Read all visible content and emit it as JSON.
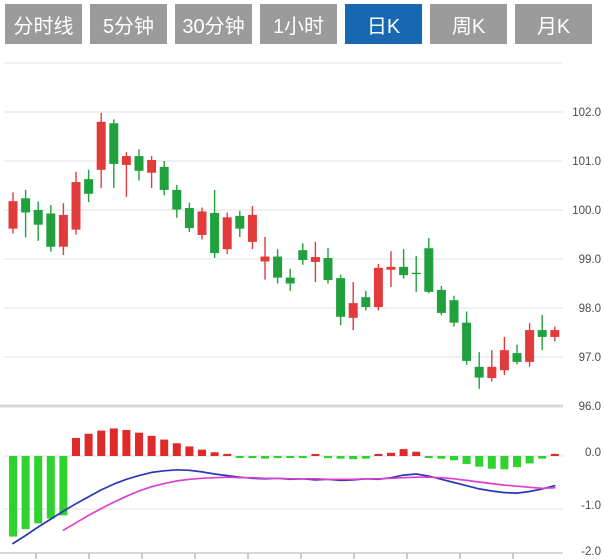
{
  "tabs": [
    {
      "label": "分时线",
      "active": false
    },
    {
      "label": "5分钟",
      "active": false
    },
    {
      "label": "30分钟",
      "active": false
    },
    {
      "label": "1小时",
      "active": false
    },
    {
      "label": "日K",
      "active": true
    },
    {
      "label": "周K",
      "active": false
    },
    {
      "label": "月K",
      "active": false
    }
  ],
  "chart_data": {
    "type": "candlestick",
    "subtype": "daily-kline-with-macd",
    "title": "",
    "price_axis": {
      "labels": [
        "102.0",
        "101.0",
        "100.0",
        "99.0",
        "98.0",
        "97.0",
        "96.0"
      ],
      "values": [
        102,
        101,
        100,
        99,
        98,
        97,
        96
      ],
      "top_gridline_value": 103,
      "range": [
        96,
        103
      ],
      "position": "right",
      "grid": true
    },
    "macd_axis": {
      "labels": [
        "0.0",
        "-1.0",
        "-2.0"
      ],
      "values": [
        0,
        -1,
        -2
      ],
      "position": "right",
      "grid": true
    },
    "candles_ohlc": [
      [
        99.62,
        100.36,
        99.52,
        100.18
      ],
      [
        100.24,
        100.41,
        99.44,
        99.95
      ],
      [
        100.0,
        100.17,
        99.37,
        99.7
      ],
      [
        99.93,
        100.1,
        99.15,
        99.25
      ],
      [
        99.25,
        100.14,
        99.08,
        99.9
      ],
      [
        99.6,
        100.78,
        99.5,
        100.57
      ],
      [
        100.63,
        100.82,
        100.16,
        100.33
      ],
      [
        100.82,
        101.98,
        100.45,
        101.8
      ],
      [
        101.77,
        101.85,
        100.45,
        100.94
      ],
      [
        100.92,
        101.18,
        100.27,
        101.1
      ],
      [
        101.1,
        101.24,
        100.6,
        100.8
      ],
      [
        100.76,
        101.1,
        100.45,
        101.02
      ],
      [
        100.88,
        101.0,
        100.3,
        100.41
      ],
      [
        100.41,
        100.51,
        99.84,
        100.01
      ],
      [
        100.04,
        100.15,
        99.55,
        99.63
      ],
      [
        99.49,
        100.05,
        99.4,
        99.97
      ],
      [
        99.94,
        100.41,
        99.02,
        99.12
      ],
      [
        99.2,
        99.95,
        99.1,
        99.85
      ],
      [
        99.88,
        99.98,
        99.45,
        99.62
      ],
      [
        99.35,
        100.08,
        99.2,
        99.9
      ],
      [
        98.95,
        99.45,
        98.58,
        99.05
      ],
      [
        99.05,
        99.2,
        98.5,
        98.62
      ],
      [
        98.62,
        98.8,
        98.35,
        98.5
      ],
      [
        99.18,
        99.32,
        98.88,
        98.98
      ],
      [
        98.94,
        99.35,
        98.53,
        99.04
      ],
      [
        99.02,
        99.22,
        98.5,
        98.57
      ],
      [
        98.61,
        98.68,
        97.65,
        97.82
      ],
      [
        97.8,
        98.53,
        97.55,
        98.1
      ],
      [
        98.22,
        98.35,
        97.95,
        98.02
      ],
      [
        98.02,
        98.9,
        97.95,
        98.82
      ],
      [
        98.78,
        99.16,
        98.43,
        98.84
      ],
      [
        98.84,
        99.2,
        98.6,
        98.67
      ],
      [
        98.72,
        99.06,
        98.33,
        98.7
      ],
      [
        99.22,
        99.43,
        98.3,
        98.33
      ],
      [
        98.37,
        98.45,
        97.85,
        97.9
      ],
      [
        98.16,
        98.25,
        97.62,
        97.7
      ],
      [
        97.7,
        97.93,
        96.84,
        96.92
      ],
      [
        96.8,
        97.1,
        96.35,
        96.58
      ],
      [
        96.57,
        97.14,
        96.5,
        96.8
      ],
      [
        96.73,
        97.41,
        96.63,
        97.14
      ],
      [
        97.08,
        97.25,
        96.85,
        96.9
      ],
      [
        96.9,
        97.69,
        96.8,
        97.55
      ],
      [
        97.55,
        97.86,
        97.14,
        97.41
      ],
      [
        97.41,
        97.62,
        97.32,
        97.55
      ]
    ],
    "macd": {
      "histogram": [
        -1.52,
        -1.38,
        -1.27,
        -1.18,
        -1.12,
        0.34,
        0.42,
        0.48,
        0.52,
        0.49,
        0.44,
        0.38,
        0.31,
        0.24,
        0.18,
        0.12,
        0.07,
        0.04,
        -0.03,
        -0.04,
        -0.05,
        -0.04,
        -0.03,
        -0.04,
        0.03,
        -0.04,
        -0.05,
        -0.06,
        -0.05,
        0.03,
        0.06,
        0.13,
        0.08,
        -0.03,
        -0.05,
        -0.08,
        -0.15,
        -0.2,
        -0.24,
        -0.25,
        -0.21,
        -0.14,
        -0.05,
        0.04
      ],
      "dif": [
        -1.65,
        -1.5,
        -1.34,
        -1.19,
        -1.04,
        -0.9,
        -0.77,
        -0.64,
        -0.53,
        -0.44,
        -0.37,
        -0.31,
        -0.28,
        -0.26,
        -0.27,
        -0.3,
        -0.34,
        -0.37,
        -0.4,
        -0.42,
        -0.43,
        -0.42,
        -0.44,
        -0.43,
        -0.45,
        -0.44,
        -0.46,
        -0.45,
        -0.43,
        -0.44,
        -0.41,
        -0.36,
        -0.34,
        -0.38,
        -0.44,
        -0.5,
        -0.56,
        -0.62,
        -0.66,
        -0.69,
        -0.7,
        -0.67,
        -0.62,
        -0.56
      ],
      "dea": [
        null,
        null,
        null,
        null,
        -1.4,
        -1.26,
        -1.12,
        -0.99,
        -0.87,
        -0.76,
        -0.66,
        -0.58,
        -0.52,
        -0.47,
        -0.44,
        -0.42,
        -0.41,
        -0.4,
        -0.41,
        -0.41,
        -0.42,
        -0.42,
        -0.43,
        -0.43,
        -0.43,
        -0.44,
        -0.44,
        -0.44,
        -0.43,
        -0.43,
        -0.42,
        -0.41,
        -0.4,
        -0.4,
        -0.41,
        -0.43,
        -0.46,
        -0.49,
        -0.52,
        -0.55,
        -0.57,
        -0.59,
        -0.61,
        -0.6
      ]
    },
    "colors": {
      "up": "#e23b3c",
      "down": "#21a13e",
      "macd_up": "#e02a2a",
      "macd_down": "#2fd32f",
      "dif_line": "#2b37b5",
      "dea_line": "#dd3fd0",
      "grid": "#e2e2e2",
      "separator": "#d8d8d8",
      "axis_text": "#4a4a4a",
      "tab_inactive": "#9b9b9b",
      "tab_active": "#1767b1"
    },
    "legend": null,
    "xlabel": "",
    "ylabel": ""
  }
}
